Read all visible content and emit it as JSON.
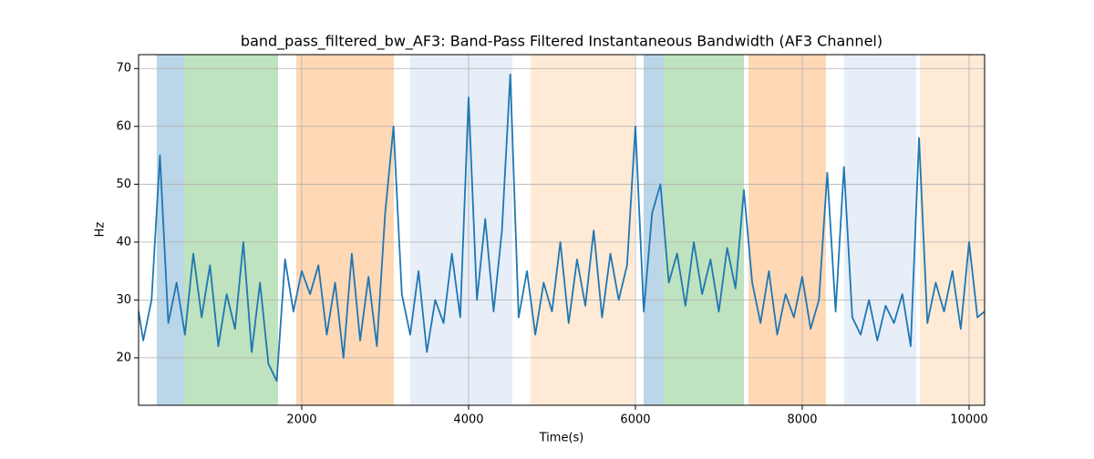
{
  "chart_data": {
    "type": "line",
    "title": "band_pass_filtered_bw_AF3: Band-Pass Filtered Instantaneous Bandwidth (AF3 Channel)",
    "xlabel": "Time(s)",
    "ylabel": "Hz",
    "xlim": [
      44,
      10186
    ],
    "ylim": [
      11.8,
      72.4
    ],
    "xticks": [
      2000,
      4000,
      6000,
      8000,
      10000
    ],
    "yticks": [
      20,
      30,
      40,
      50,
      60,
      70
    ],
    "grid": true,
    "spans": [
      {
        "start": 262,
        "end": 590,
        "color": "#1f77b4"
      },
      {
        "start": 590,
        "end": 1716,
        "color": "#2ca02c"
      },
      {
        "start": 1934,
        "end": 3104,
        "color": "#ff7f0e"
      },
      {
        "start": 3300,
        "end": 4525,
        "color": "#aec7e8"
      },
      {
        "start": 4743,
        "end": 5989,
        "color": "#ffbb78"
      },
      {
        "start": 6098,
        "end": 6339,
        "color": "#1f77b4"
      },
      {
        "start": 6339,
        "end": 7301,
        "color": "#2ca02c"
      },
      {
        "start": 7355,
        "end": 8284,
        "color": "#ff7f0e"
      },
      {
        "start": 8503,
        "end": 9366,
        "color": "#aec7e8"
      },
      {
        "start": 9410,
        "end": 10186,
        "color": "#ffbb78"
      }
    ],
    "x": [
      44,
      100,
      200,
      300,
      400,
      500,
      600,
      700,
      800,
      900,
      1000,
      1100,
      1200,
      1300,
      1400,
      1500,
      1600,
      1700,
      1800,
      1900,
      2000,
      2100,
      2200,
      2300,
      2400,
      2500,
      2600,
      2700,
      2800,
      2900,
      3000,
      3100,
      3200,
      3300,
      3400,
      3500,
      3600,
      3700,
      3800,
      3900,
      4000,
      4100,
      4200,
      4300,
      4400,
      4500,
      4600,
      4700,
      4800,
      4900,
      5000,
      5100,
      5200,
      5300,
      5400,
      5500,
      5600,
      5700,
      5800,
      5900,
      6000,
      6100,
      6200,
      6300,
      6400,
      6500,
      6600,
      6700,
      6800,
      6900,
      7000,
      7100,
      7200,
      7300,
      7400,
      7500,
      7600,
      7700,
      7800,
      7900,
      8000,
      8100,
      8200,
      8300,
      8400,
      8500,
      8600,
      8700,
      8800,
      8900,
      9000,
      9100,
      9200,
      9300,
      9400,
      9500,
      9600,
      9700,
      9800,
      9900,
      10000,
      10100,
      10186
    ],
    "series": [
      {
        "name": "band_pass_filtered_bw_AF3",
        "color": "#1f77b4",
        "values": [
          28,
          23,
          30,
          55,
          26,
          33,
          24,
          38,
          27,
          36,
          22,
          31,
          25,
          40,
          21,
          33,
          19,
          16,
          37,
          28,
          35,
          31,
          36,
          24,
          33,
          20,
          38,
          23,
          34,
          22,
          45,
          60,
          31,
          24,
          35,
          21,
          30,
          26,
          38,
          27,
          65,
          30,
          44,
          28,
          42,
          69,
          27,
          35,
          24,
          33,
          28,
          40,
          26,
          37,
          29,
          42,
          27,
          38,
          30,
          36,
          60,
          28,
          45,
          50,
          33,
          38,
          29,
          40,
          31,
          37,
          28,
          39,
          32,
          49,
          33,
          26,
          35,
          24,
          31,
          27,
          34,
          25,
          30,
          52,
          28,
          53,
          27,
          24,
          30,
          23,
          29,
          26,
          31,
          22,
          58,
          26,
          33,
          28,
          35,
          25,
          40,
          27,
          28
        ]
      }
    ]
  }
}
